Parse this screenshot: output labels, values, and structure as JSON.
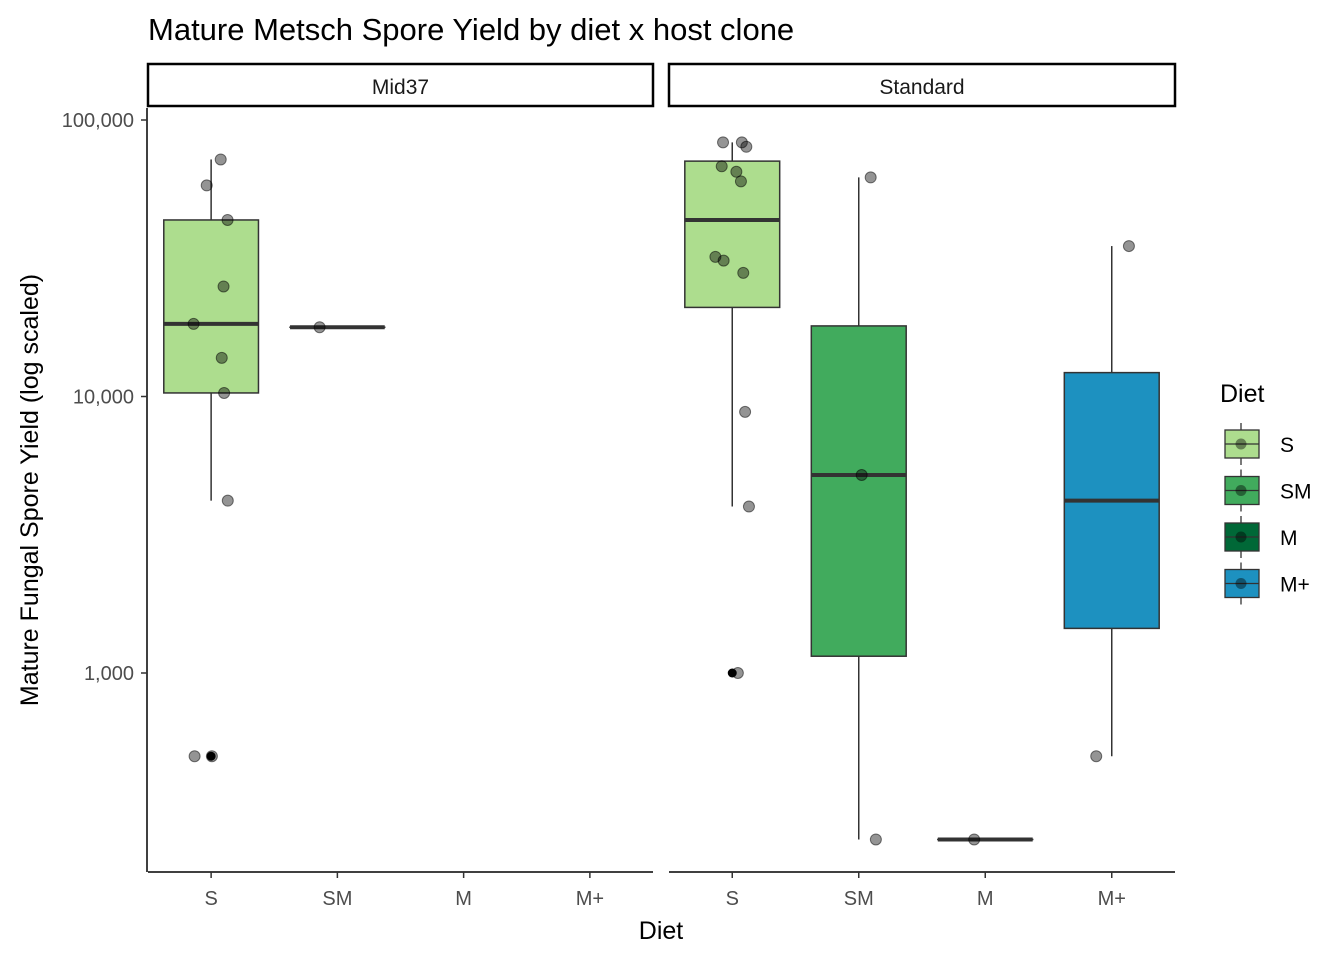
{
  "chart_data": {
    "type": "box",
    "title": "Mature Metsch Spore Yield by diet x host clone",
    "xlabel": "Diet",
    "ylabel": "Mature Fungal Spore Yield (log scaled)",
    "y_scale": "log10",
    "ylim": [
      190,
      160000
    ],
    "yticks": [
      1000,
      10000,
      100000
    ],
    "ytick_labels": [
      "1,000",
      "10,000",
      "100,000"
    ],
    "categories": [
      "S",
      "SM",
      "M",
      "M+"
    ],
    "legend": {
      "title": "Diet",
      "position": "right",
      "entries": [
        {
          "label": "S",
          "color": "#addd8e"
        },
        {
          "label": "SM",
          "color": "#41ab5d"
        },
        {
          "label": "M",
          "color": "#006837"
        },
        {
          "label": "M+",
          "color": "#1d91c0"
        }
      ]
    },
    "panels": [
      {
        "label": "Mid37",
        "boxes": [
          {
            "category": "S",
            "q1": 10300,
            "median": 18300,
            "q3": 43500,
            "whisker_low": 4200,
            "whisker_high": 72000,
            "points": [
              72000,
              58000,
              43500,
              25000,
              18300,
              13800,
              10300,
              4200,
              500,
              500
            ],
            "outliers": [
              500
            ]
          },
          {
            "category": "SM",
            "q1": 17800,
            "median": 17800,
            "q3": 17800,
            "whisker_low": 17800,
            "whisker_high": 17800,
            "points": [
              17800
            ],
            "outliers": []
          }
        ]
      },
      {
        "label": "Standard",
        "boxes": [
          {
            "category": "S",
            "q1": 21000,
            "median": 43500,
            "q3": 71000,
            "whisker_low": 4000,
            "whisker_high": 83000,
            "points": [
              83000,
              83000,
              80000,
              68000,
              65000,
              60000,
              32000,
              31000,
              28000,
              8800,
              4000,
              1000
            ],
            "outliers": [
              1000
            ]
          },
          {
            "category": "SM",
            "q1": 1150,
            "median": 5200,
            "q3": 18000,
            "whisker_low": 250,
            "whisker_high": 62000,
            "points": [
              62000,
              5200,
              250
            ],
            "outliers": []
          },
          {
            "category": "M",
            "q1": 250,
            "median": 250,
            "q3": 250,
            "whisker_low": 250,
            "whisker_high": 250,
            "points": [
              250
            ],
            "outliers": []
          },
          {
            "category": "M+",
            "q1": 1450,
            "median": 4200,
            "q3": 12200,
            "whisker_low": 500,
            "whisker_high": 35000,
            "points": [
              35000,
              500
            ],
            "outliers": []
          }
        ]
      }
    ]
  }
}
